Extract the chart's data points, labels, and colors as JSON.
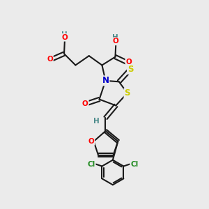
{
  "bg_color": "#ebebeb",
  "bond_color": "#1a1a1a",
  "bond_width": 1.5,
  "atom_colors": {
    "O": "#ff0000",
    "N": "#0000cc",
    "S": "#cccc00",
    "Cl": "#228b22",
    "H": "#4a8a8a",
    "C": "#1a1a1a"
  },
  "font_size": 8.5
}
